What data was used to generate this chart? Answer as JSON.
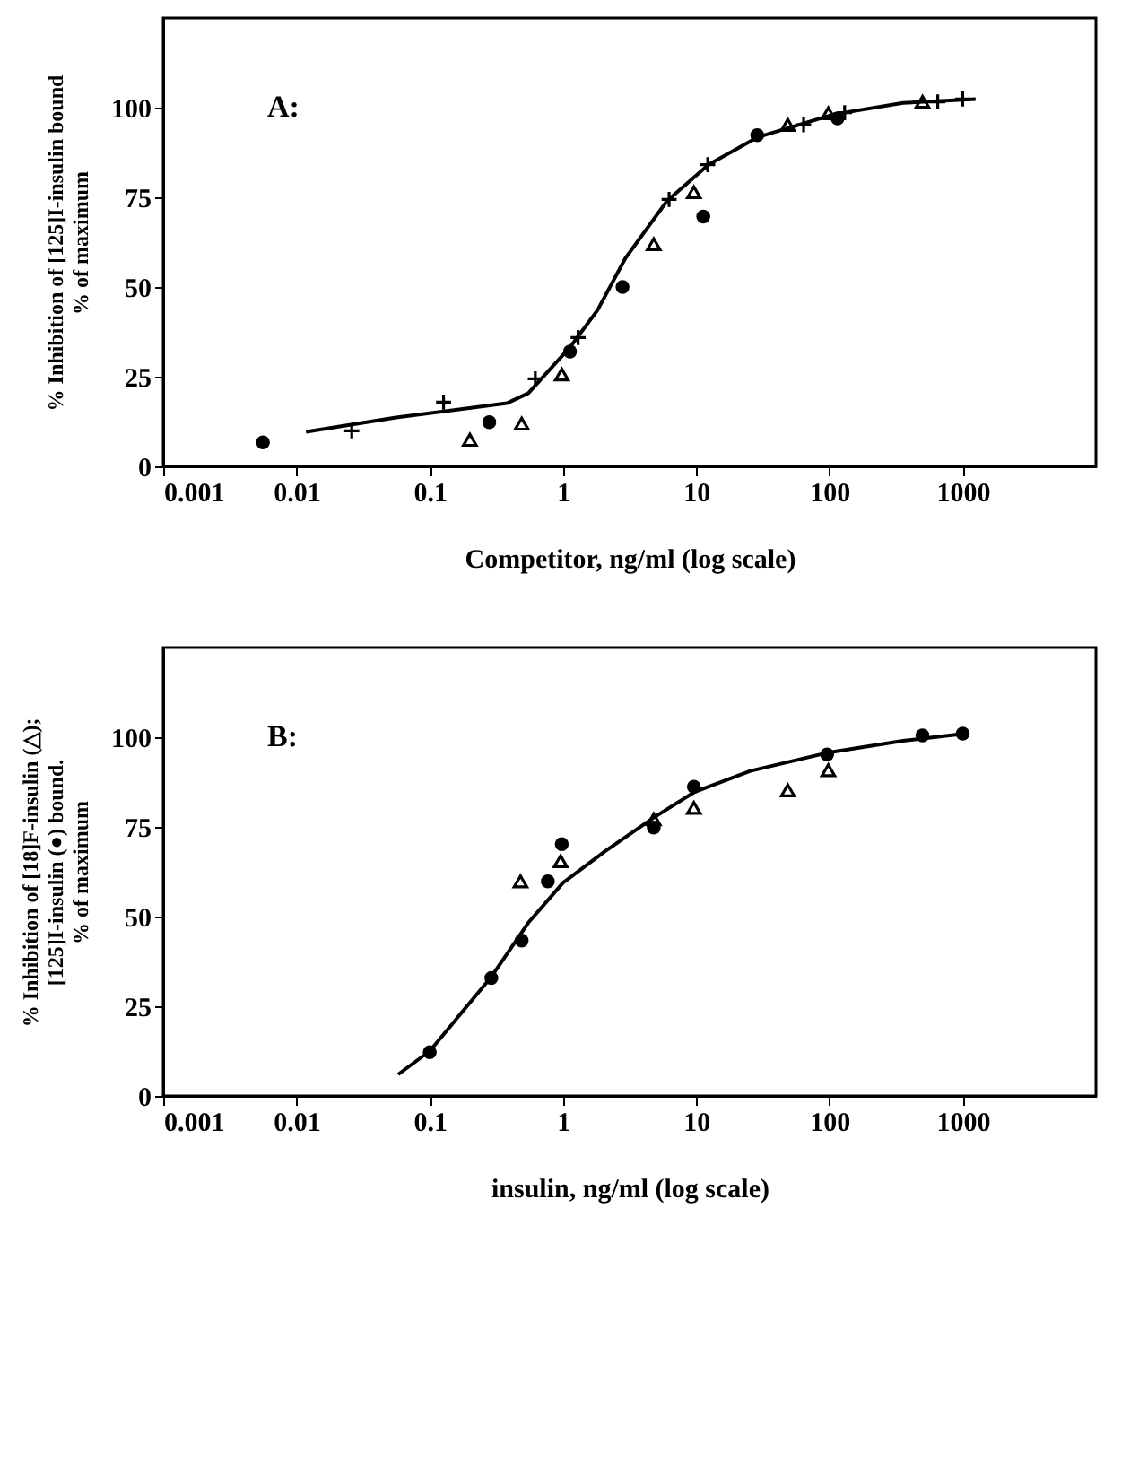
{
  "chart_data": [
    {
      "type": "scatter",
      "xlabel": "Competitor, ng/ml (log scale)",
      "ylabel": "% Inhibition of [125]I-insulin bound\n% of maximum",
      "annotations": [
        "A:"
      ],
      "log": "x",
      "grid": false,
      "xlim": [
        0.001,
        10000
      ],
      "xticks": [
        0.001,
        0.01,
        0.1,
        1,
        10,
        100,
        1000
      ],
      "ylim": [
        0,
        125
      ],
      "yticks": [
        0,
        25,
        50,
        75,
        100
      ],
      "series": [
        {
          "type": "scatter",
          "marker": "circle",
          "color": "#000000",
          "x": [
            0.0056,
            0.28,
            1.13,
            2.8,
            11.3,
            28.7,
            115
          ],
          "values": [
            6.7,
            12.3,
            32,
            50,
            69.6,
            92.3,
            97
          ]
        },
        {
          "type": "scatter",
          "marker": "triangle",
          "color": "#000000",
          "x": [
            0.2,
            0.49,
            0.98,
            4.8,
            9.6,
            48.7,
            98,
            499
          ],
          "values": [
            7.4,
            11.9,
            25.6,
            61.9,
            76.4,
            95.2,
            98.4,
            101.6
          ]
        },
        {
          "type": "scatter",
          "marker": "cross",
          "color": "#000000",
          "x": [
            0.026,
            0.127,
            0.62,
            1.3,
            6.26,
            12.2,
            64,
            130,
            650,
            1000
          ],
          "values": [
            9.9,
            17.9,
            24.4,
            35.9,
            74.4,
            84.1,
            95.2,
            98.6,
            101.6,
            102.4
          ]
        },
        {
          "type": "line",
          "marker": "none",
          "color": "#000000",
          "x": [
            0.0118,
            0.056,
            0.38,
            0.55,
            1.13,
            1.82,
            2.94,
            6.04,
            12.4,
            28.7,
            107,
            356,
            1250
          ],
          "values": [
            9.6,
            13.6,
            17.6,
            20.4,
            33.2,
            43.6,
            58,
            74,
            84.1,
            91.7,
            98.1,
            101.3,
            102.4
          ]
        }
      ]
    },
    {
      "type": "scatter",
      "xlabel": "insulin, ng/ml (log scale)",
      "ylabel": "% Inhibition of [18]F-insulin (△);\n[125]I-insulin (●) bound.\n% of maximum",
      "annotations": [
        "B:"
      ],
      "log": "x",
      "grid": false,
      "xlim": [
        0.001,
        10000
      ],
      "xticks": [
        0.001,
        0.01,
        0.1,
        1,
        10,
        100,
        1000
      ],
      "ylim": [
        0,
        125
      ],
      "yticks": [
        0,
        25,
        50,
        75,
        100
      ],
      "series": [
        {
          "type": "scatter",
          "marker": "circle",
          "color": "#000000",
          "x": [
            0.1,
            0.29,
            0.49,
            0.77,
            0.98,
            4.8,
            9.6,
            96,
            499,
            1000
          ],
          "values": [
            12.2,
            32.9,
            43.3,
            59.8,
            70.2,
            74.8,
            86.2,
            95.2,
            100.5,
            101
          ]
        },
        {
          "type": "scatter",
          "marker": "triangle",
          "color": "#000000",
          "x": [
            0.48,
            0.96,
            4.8,
            9.6,
            48.7,
            98
          ],
          "values": [
            59.8,
            65.4,
            77.1,
            80.3,
            85.2,
            90.8
          ]
        },
        {
          "type": "line",
          "marker": "none",
          "color": "#000000",
          "x": [
            0.058,
            0.1,
            0.29,
            0.55,
            1,
            2.05,
            4.8,
            9.8,
            25.5,
            95,
            356,
            1040
          ],
          "values": [
            6,
            12.5,
            33.2,
            48.3,
            59.4,
            68.1,
            77.6,
            84.8,
            90.6,
            95.6,
            99,
            101
          ]
        }
      ]
    }
  ]
}
